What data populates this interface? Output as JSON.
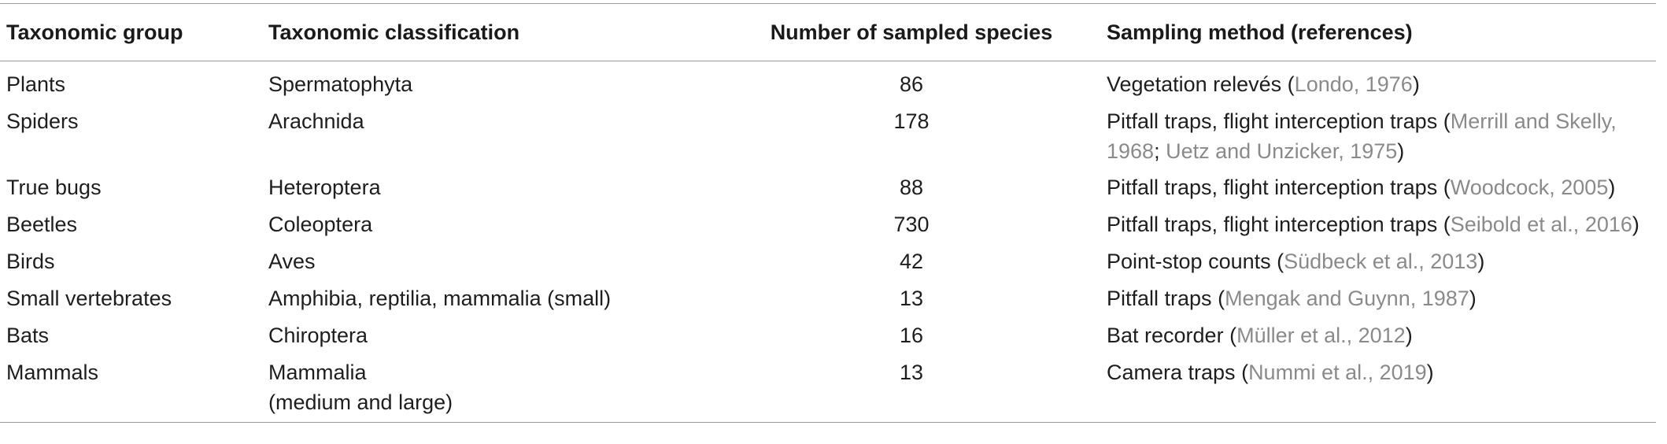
{
  "table": {
    "headers": [
      "Taxonomic group",
      "Taxonomic classification",
      "Number of sampled species",
      "Sampling method (references)"
    ],
    "rows": [
      {
        "group": "Plants",
        "classification": [
          "Spermatophyta"
        ],
        "species": "86",
        "method": "Vegetation relevés",
        "refs": [
          {
            "sep": " (",
            "text": "Londo, 1976"
          }
        ],
        "close": ")"
      },
      {
        "group": "Spiders",
        "classification": [
          "Arachnida"
        ],
        "species": "178",
        "method": "Pitfall traps, flight interception traps",
        "refs": [
          {
            "sep": " (",
            "text": "Merrill and Skelly, 1968"
          },
          {
            "sep": "; ",
            "text": "Uetz and Unzicker, 1975"
          }
        ],
        "close": ")"
      },
      {
        "group": "True bugs",
        "classification": [
          "Heteroptera"
        ],
        "species": "88",
        "method": "Pitfall traps, flight interception traps",
        "refs": [
          {
            "sep": " (",
            "text": "Woodcock, 2005"
          }
        ],
        "close": ")"
      },
      {
        "group": "Beetles",
        "classification": [
          "Coleoptera"
        ],
        "species": "730",
        "method": "Pitfall traps, flight interception traps",
        "refs": [
          {
            "sep": " (",
            "text": "Seibold et al., 2016"
          }
        ],
        "close": ")"
      },
      {
        "group": "Birds",
        "classification": [
          "Aves"
        ],
        "species": "42",
        "method": "Point-stop counts",
        "refs": [
          {
            "sep": " (",
            "text": "Südbeck et al., 2013"
          }
        ],
        "close": ")"
      },
      {
        "group": "Small vertebrates",
        "classification": [
          "Amphibia, reptilia, mammalia (small)"
        ],
        "species": "13",
        "method": "Pitfall traps",
        "refs": [
          {
            "sep": " (",
            "text": "Mengak and Guynn, 1987"
          }
        ],
        "close": ")"
      },
      {
        "group": "Bats",
        "classification": [
          "Chiroptera"
        ],
        "species": "16",
        "method": "Bat recorder",
        "refs": [
          {
            "sep": " (",
            "text": "Müller et al., 2012"
          }
        ],
        "close": ")"
      },
      {
        "group": "Mammals",
        "classification": [
          "Mammalia",
          "(medium and large)"
        ],
        "species": "13",
        "method": "Camera traps",
        "refs": [
          {
            "sep": " (",
            "text": "Nummi et al., 2019"
          }
        ],
        "close": ")"
      }
    ]
  }
}
